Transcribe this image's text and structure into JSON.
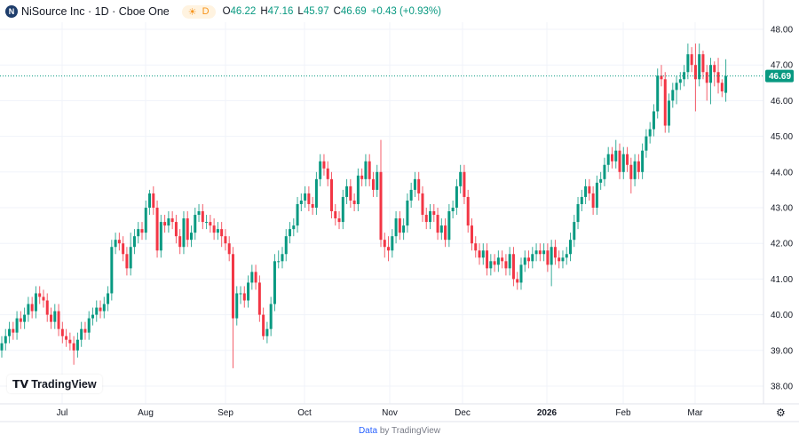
{
  "header": {
    "symbol_logo": "N",
    "title": "NiSource Inc · 1D · Cboe One",
    "session_icon": "sun-icon",
    "session_label": "D",
    "open_label": "O",
    "open": "46.22",
    "high_label": "H",
    "high": "47.16",
    "low_label": "L",
    "low": "45.97",
    "close_label": "C",
    "close": "46.69",
    "change": "+0.43 (+0.93%)"
  },
  "branding": {
    "logo_text": "TradingView",
    "credit_link": "Data",
    "credit_rest": "by TradingView"
  },
  "colors": {
    "up": "#089981",
    "down": "#f23645",
    "grid": "#f0f3fa"
  },
  "chart_data": {
    "type": "candlestick",
    "ylim": [
      37.5,
      48.3
    ],
    "y_ticks": [
      "48.00",
      "47.00",
      "46.00",
      "45.00",
      "44.00",
      "43.00",
      "42.00",
      "41.00",
      "40.00",
      "39.00",
      "38.00"
    ],
    "x_ticks": [
      "Jul",
      "Aug",
      "Sep",
      "Oct",
      "Nov",
      "Dec",
      "2026",
      "Feb",
      "Mar"
    ],
    "last_price": "46.69",
    "grid": true,
    "ohlc": [
      [
        39.0,
        39.4,
        38.8,
        39.2
      ],
      [
        39.2,
        39.6,
        39.0,
        39.4
      ],
      [
        39.4,
        39.8,
        39.2,
        39.6
      ],
      [
        39.6,
        39.8,
        39.3,
        39.5
      ],
      [
        39.5,
        40.1,
        39.3,
        39.9
      ],
      [
        39.9,
        40.1,
        39.6,
        39.8
      ],
      [
        39.8,
        40.2,
        39.6,
        40.0
      ],
      [
        40.0,
        40.5,
        39.8,
        40.3
      ],
      [
        40.3,
        40.5,
        39.9,
        40.1
      ],
      [
        40.1,
        40.8,
        39.9,
        40.6
      ],
      [
        40.6,
        40.8,
        40.3,
        40.5
      ],
      [
        40.5,
        40.7,
        40.2,
        40.4
      ],
      [
        40.4,
        40.6,
        39.8,
        40.0
      ],
      [
        40.0,
        40.2,
        39.6,
        39.8
      ],
      [
        39.8,
        40.3,
        39.6,
        40.1
      ],
      [
        40.1,
        40.3,
        39.4,
        39.6
      ],
      [
        39.6,
        39.8,
        39.2,
        39.4
      ],
      [
        39.4,
        39.6,
        39.1,
        39.3
      ],
      [
        39.3,
        39.5,
        39.0,
        39.2
      ],
      [
        39.2,
        39.4,
        38.6,
        39.0
      ],
      [
        39.0,
        39.5,
        38.8,
        39.3
      ],
      [
        39.3,
        39.8,
        39.1,
        39.6
      ],
      [
        39.6,
        39.8,
        39.3,
        39.5
      ],
      [
        39.5,
        40.1,
        39.3,
        39.9
      ],
      [
        39.9,
        40.2,
        39.7,
        40.0
      ],
      [
        40.0,
        40.4,
        39.8,
        40.2
      ],
      [
        40.2,
        40.4,
        39.9,
        40.1
      ],
      [
        40.1,
        40.5,
        39.9,
        40.3
      ],
      [
        40.3,
        40.8,
        40.1,
        40.6
      ],
      [
        40.6,
        42.1,
        40.4,
        41.9
      ],
      [
        41.9,
        42.3,
        41.7,
        42.1
      ],
      [
        42.1,
        42.3,
        41.8,
        42.0
      ],
      [
        42.0,
        42.2,
        41.5,
        41.7
      ],
      [
        41.7,
        41.9,
        41.1,
        41.3
      ],
      [
        41.3,
        42.3,
        41.1,
        41.9
      ],
      [
        41.9,
        42.4,
        41.7,
        42.2
      ],
      [
        42.2,
        42.6,
        42.0,
        42.4
      ],
      [
        42.4,
        42.6,
        42.1,
        42.3
      ],
      [
        42.3,
        43.2,
        42.1,
        43.0
      ],
      [
        43.0,
        43.5,
        42.8,
        43.4
      ],
      [
        43.4,
        43.6,
        42.8,
        43.0
      ],
      [
        43.0,
        43.2,
        41.6,
        41.8
      ],
      [
        41.8,
        42.8,
        41.6,
        42.6
      ],
      [
        42.6,
        42.8,
        42.3,
        42.5
      ],
      [
        42.5,
        42.9,
        42.3,
        42.7
      ],
      [
        42.7,
        42.9,
        42.4,
        42.6
      ],
      [
        42.6,
        42.8,
        42.0,
        42.2
      ],
      [
        42.2,
        42.4,
        41.7,
        41.9
      ],
      [
        41.9,
        42.9,
        41.7,
        42.7
      ],
      [
        42.7,
        42.9,
        41.9,
        42.1
      ],
      [
        42.1,
        42.5,
        41.9,
        42.3
      ],
      [
        42.3,
        43.0,
        42.1,
        42.8
      ],
      [
        42.8,
        43.1,
        42.6,
        42.9
      ],
      [
        42.9,
        43.1,
        42.4,
        42.6
      ],
      [
        42.6,
        42.8,
        42.4,
        42.6
      ],
      [
        42.6,
        42.8,
        42.3,
        42.5
      ],
      [
        42.5,
        42.7,
        42.1,
        42.3
      ],
      [
        42.3,
        42.6,
        42.1,
        42.4
      ],
      [
        42.4,
        42.6,
        41.9,
        42.2
      ],
      [
        42.2,
        42.4,
        41.8,
        42.0
      ],
      [
        42.0,
        42.2,
        41.5,
        41.7
      ],
      [
        41.7,
        41.9,
        38.5,
        39.9
      ],
      [
        39.9,
        40.8,
        39.7,
        40.6
      ],
      [
        40.6,
        40.8,
        40.3,
        40.6
      ],
      [
        40.6,
        40.8,
        40.2,
        40.4
      ],
      [
        40.4,
        41.1,
        40.2,
        40.9
      ],
      [
        40.9,
        41.4,
        40.7,
        41.2
      ],
      [
        41.2,
        41.4,
        40.7,
        40.9
      ],
      [
        40.9,
        41.1,
        39.8,
        40.0
      ],
      [
        40.0,
        40.2,
        39.3,
        39.4
      ],
      [
        39.4,
        39.8,
        39.2,
        39.6
      ],
      [
        39.6,
        40.5,
        39.4,
        40.3
      ],
      [
        40.3,
        41.7,
        40.1,
        41.5
      ],
      [
        41.5,
        41.8,
        41.3,
        41.5
      ],
      [
        41.5,
        41.9,
        41.3,
        41.7
      ],
      [
        41.7,
        42.4,
        41.5,
        42.2
      ],
      [
        42.2,
        42.6,
        42.0,
        42.4
      ],
      [
        42.4,
        42.7,
        42.2,
        42.5
      ],
      [
        42.5,
        43.3,
        42.3,
        43.1
      ],
      [
        43.1,
        43.4,
        42.9,
        43.2
      ],
      [
        43.2,
        43.6,
        43.0,
        43.4
      ],
      [
        43.4,
        43.6,
        42.9,
        43.1
      ],
      [
        43.1,
        43.3,
        42.8,
        43.0
      ],
      [
        43.0,
        44.0,
        42.8,
        43.8
      ],
      [
        43.8,
        44.5,
        43.6,
        44.3
      ],
      [
        44.3,
        44.5,
        43.9,
        44.1
      ],
      [
        44.1,
        44.3,
        43.6,
        43.8
      ],
      [
        43.8,
        44.0,
        42.7,
        42.9
      ],
      [
        42.9,
        43.1,
        42.5,
        42.7
      ],
      [
        42.7,
        42.9,
        42.4,
        42.6
      ],
      [
        42.6,
        43.5,
        42.4,
        43.3
      ],
      [
        43.3,
        43.8,
        43.1,
        43.6
      ],
      [
        43.6,
        43.8,
        43.0,
        43.2
      ],
      [
        43.2,
        43.4,
        42.9,
        43.1
      ],
      [
        43.1,
        44.1,
        42.9,
        43.9
      ],
      [
        43.9,
        44.1,
        43.6,
        43.8
      ],
      [
        43.8,
        44.5,
        43.6,
        44.3
      ],
      [
        44.3,
        44.5,
        43.6,
        43.8
      ],
      [
        43.8,
        44.0,
        43.3,
        43.5
      ],
      [
        43.5,
        44.2,
        43.3,
        44.0
      ],
      [
        44.0,
        44.9,
        41.9,
        42.1
      ],
      [
        42.1,
        42.3,
        41.6,
        41.9
      ],
      [
        41.9,
        42.2,
        41.5,
        41.8
      ],
      [
        41.8,
        42.4,
        41.6,
        42.2
      ],
      [
        42.2,
        42.9,
        42.0,
        42.7
      ],
      [
        42.7,
        42.9,
        42.1,
        42.3
      ],
      [
        42.3,
        42.7,
        42.1,
        42.5
      ],
      [
        42.5,
        43.4,
        42.3,
        43.2
      ],
      [
        43.2,
        43.7,
        43.0,
        43.5
      ],
      [
        43.5,
        44.0,
        43.3,
        43.8
      ],
      [
        43.8,
        44.0,
        43.2,
        43.4
      ],
      [
        43.4,
        43.6,
        42.6,
        42.8
      ],
      [
        42.8,
        43.0,
        42.4,
        42.6
      ],
      [
        42.6,
        43.1,
        42.4,
        42.9
      ],
      [
        42.9,
        43.1,
        42.6,
        42.8
      ],
      [
        42.8,
        43.0,
        42.1,
        42.3
      ],
      [
        42.3,
        42.7,
        42.1,
        42.5
      ],
      [
        42.5,
        42.7,
        41.9,
        42.1
      ],
      [
        42.1,
        43.1,
        41.9,
        42.9
      ],
      [
        42.9,
        43.2,
        42.7,
        43.0
      ],
      [
        43.0,
        43.8,
        42.8,
        43.6
      ],
      [
        43.6,
        44.2,
        43.4,
        44.0
      ],
      [
        44.0,
        44.2,
        43.1,
        43.3
      ],
      [
        43.3,
        43.5,
        42.3,
        42.5
      ],
      [
        42.5,
        42.7,
        41.8,
        42.0
      ],
      [
        42.0,
        42.2,
        41.6,
        41.8
      ],
      [
        41.8,
        42.0,
        41.4,
        41.6
      ],
      [
        41.6,
        42.0,
        41.4,
        41.8
      ],
      [
        41.8,
        42.0,
        41.1,
        41.3
      ],
      [
        41.3,
        41.7,
        41.1,
        41.5
      ],
      [
        41.5,
        41.7,
        41.2,
        41.4
      ],
      [
        41.4,
        41.8,
        41.2,
        41.6
      ],
      [
        41.6,
        41.8,
        41.3,
        41.5
      ],
      [
        41.5,
        41.7,
        41.1,
        41.3
      ],
      [
        41.3,
        41.9,
        41.1,
        41.7
      ],
      [
        41.7,
        41.9,
        40.8,
        41.0
      ],
      [
        41.0,
        41.2,
        40.7,
        40.9
      ],
      [
        40.9,
        41.6,
        40.7,
        41.4
      ],
      [
        41.4,
        41.8,
        41.2,
        41.6
      ],
      [
        41.6,
        41.8,
        41.3,
        41.5
      ],
      [
        41.5,
        41.9,
        41.3,
        41.7
      ],
      [
        41.7,
        42.0,
        41.5,
        41.8
      ],
      [
        41.8,
        42.0,
        41.5,
        41.7
      ],
      [
        41.7,
        42.0,
        41.5,
        41.8
      ],
      [
        41.8,
        42.0,
        41.2,
        41.4
      ],
      [
        41.4,
        42.1,
        40.8,
        41.9
      ],
      [
        41.9,
        42.1,
        41.4,
        41.6
      ],
      [
        41.6,
        41.8,
        41.3,
        41.5
      ],
      [
        41.5,
        41.8,
        41.3,
        41.6
      ],
      [
        41.6,
        41.9,
        41.4,
        41.7
      ],
      [
        41.7,
        42.3,
        41.5,
        42.1
      ],
      [
        42.1,
        42.8,
        41.9,
        42.6
      ],
      [
        42.6,
        43.3,
        42.4,
        43.1
      ],
      [
        43.1,
        43.5,
        42.9,
        43.3
      ],
      [
        43.3,
        43.8,
        43.1,
        43.6
      ],
      [
        43.6,
        43.8,
        43.2,
        43.4
      ],
      [
        43.4,
        43.6,
        42.8,
        43.0
      ],
      [
        43.0,
        43.9,
        42.8,
        43.7
      ],
      [
        43.7,
        44.0,
        43.5,
        43.8
      ],
      [
        43.8,
        44.4,
        43.6,
        44.2
      ],
      [
        44.2,
        44.7,
        44.0,
        44.5
      ],
      [
        44.5,
        44.7,
        44.1,
        44.3
      ],
      [
        44.3,
        44.9,
        44.1,
        44.6
      ],
      [
        44.6,
        44.8,
        43.8,
        44.0
      ],
      [
        44.0,
        44.7,
        43.8,
        44.5
      ],
      [
        44.5,
        44.7,
        44.0,
        44.2
      ],
      [
        44.2,
        44.4,
        43.4,
        43.8
      ],
      [
        43.8,
        44.5,
        43.6,
        44.3
      ],
      [
        44.3,
        44.5,
        43.8,
        44.0
      ],
      [
        44.0,
        44.8,
        43.8,
        44.6
      ],
      [
        44.6,
        45.2,
        44.4,
        45.0
      ],
      [
        45.0,
        45.4,
        44.8,
        45.2
      ],
      [
        45.2,
        45.9,
        45.0,
        45.7
      ],
      [
        45.7,
        46.9,
        45.5,
        46.7
      ],
      [
        46.7,
        47.0,
        46.4,
        46.6
      ],
      [
        46.6,
        46.8,
        45.1,
        45.3
      ],
      [
        45.3,
        46.2,
        45.1,
        46.0
      ],
      [
        46.0,
        46.5,
        45.8,
        46.3
      ],
      [
        46.3,
        46.7,
        45.9,
        46.5
      ],
      [
        46.5,
        46.8,
        46.3,
        46.6
      ],
      [
        46.6,
        47.0,
        46.4,
        46.8
      ],
      [
        46.8,
        47.6,
        46.6,
        47.3
      ],
      [
        47.3,
        47.5,
        46.8,
        47.0
      ],
      [
        47.0,
        47.6,
        45.7,
        46.6
      ],
      [
        46.6,
        47.6,
        46.4,
        47.3
      ],
      [
        47.3,
        47.4,
        46.6,
        46.8
      ],
      [
        46.8,
        47.0,
        46.0,
        46.5
      ],
      [
        46.5,
        47.2,
        45.9,
        47.0
      ],
      [
        47.0,
        47.1,
        46.4,
        46.8
      ],
      [
        46.8,
        47.2,
        46.2,
        46.5
      ],
      [
        46.5,
        46.6,
        46.1,
        46.26
      ],
      [
        46.22,
        47.16,
        45.97,
        46.69
      ]
    ]
  }
}
